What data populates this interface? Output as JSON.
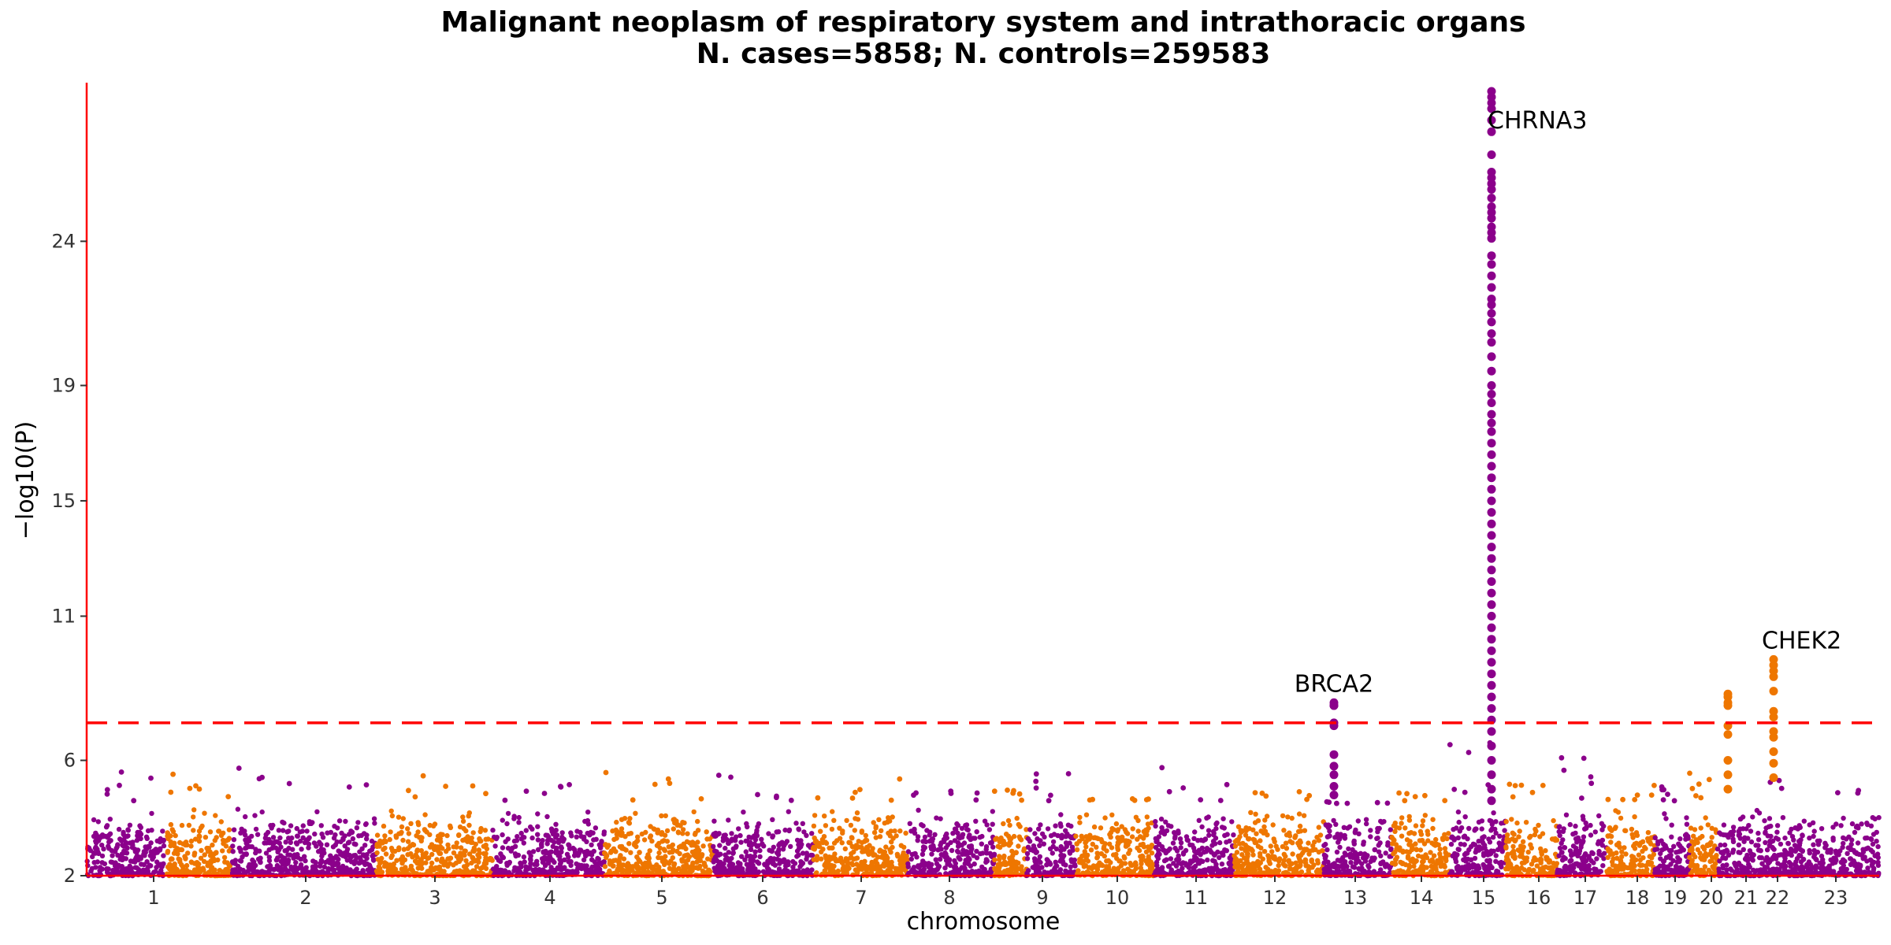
{
  "chart_data": {
    "type": "scatter",
    "subtype": "manhattan",
    "title": "Malignant neoplasm of respiratory system and intrathoracic organs",
    "subtitle": "N. cases=5858; N. controls=259583",
    "xlabel": "chromosome",
    "ylabel": "−log10(P)",
    "ylim": [
      2,
      29.5
    ],
    "yticks": [
      2,
      6,
      11,
      15,
      19,
      24
    ],
    "significance_line": 7.3,
    "grid": false,
    "colors": {
      "odd": "#8B008B",
      "even": "#EE7600",
      "threshold": "#FF0000",
      "axis": "#FF0000"
    },
    "chromosomes": [
      {
        "label": "1",
        "max": 5.6
      },
      {
        "label": "2",
        "max": 5.6
      },
      {
        "label": "3",
        "max": 5.9
      },
      {
        "label": "4",
        "max": 5.5
      },
      {
        "label": "5",
        "max": 5.5
      },
      {
        "label": "6",
        "max": 6.3
      },
      {
        "label": "7",
        "max": 6.1
      },
      {
        "label": "8",
        "max": 5.5
      },
      {
        "label": "9",
        "max": 5.0
      },
      {
        "label": "10",
        "max": 5.0
      },
      {
        "label": "11",
        "max": 5.7
      },
      {
        "label": "12",
        "max": 4.7
      },
      {
        "label": "13",
        "max": 5.8
      },
      {
        "label": "14",
        "max": 5.0
      },
      {
        "label": "15",
        "max": 4.5
      },
      {
        "label": "16",
        "max": 5.0
      },
      {
        "label": "17",
        "max": 6.8
      },
      {
        "label": "18",
        "max": 5.2
      },
      {
        "label": "19",
        "max": 6.4
      },
      {
        "label": "20",
        "max": 5.2
      },
      {
        "label": "21",
        "max": 5.4
      },
      {
        "label": "22",
        "max": 5.7
      },
      {
        "label": "23",
        "max": 5.5
      }
    ],
    "peaks": [
      {
        "gene": "BRCA2",
        "chromosome": "13",
        "top": 8.0,
        "values": [
          8.0,
          7.9,
          7.9,
          7.3,
          7.2,
          6.2,
          5.8,
          5.5,
          5.1,
          4.8
        ]
      },
      {
        "gene": "CHRNA3",
        "chromosome": "15",
        "top": 29.2,
        "values": [
          29.2,
          29.0,
          28.8,
          28.6,
          28.2,
          27.8,
          27.0,
          26.4,
          26.2,
          26.0,
          25.8,
          25.5,
          25.2,
          25.0,
          24.8,
          24.5,
          24.3,
          24.1,
          23.5,
          23.2,
          22.8,
          22.4,
          22.0,
          21.8,
          21.5,
          21.2,
          20.8,
          20.5,
          20.0,
          19.5,
          19.0,
          18.7,
          18.4,
          18.0,
          17.7,
          17.4,
          17.0,
          16.6,
          16.2,
          15.8,
          15.4,
          15.0,
          14.6,
          14.2,
          13.8,
          13.4,
          13.0,
          12.6,
          12.2,
          11.8,
          11.4,
          11.0,
          10.6,
          10.2,
          9.8,
          9.4,
          9.0,
          8.6,
          8.2,
          7.8,
          7.4,
          7.0,
          6.5,
          6.0,
          5.5,
          5.0,
          4.6
        ]
      },
      {
        "gene": "",
        "chromosome": "20",
        "top": 8.3,
        "values": [
          8.3,
          8.2,
          8.0,
          7.9,
          7.2,
          6.9,
          6.0,
          5.5,
          5.0
        ]
      },
      {
        "gene": "CHEK2",
        "chromosome": "22",
        "top": 9.5,
        "values": [
          9.5,
          9.3,
          9.1,
          8.9,
          8.4,
          7.7,
          7.5,
          7.0,
          6.8,
          6.3,
          5.9,
          5.4
        ]
      }
    ]
  }
}
